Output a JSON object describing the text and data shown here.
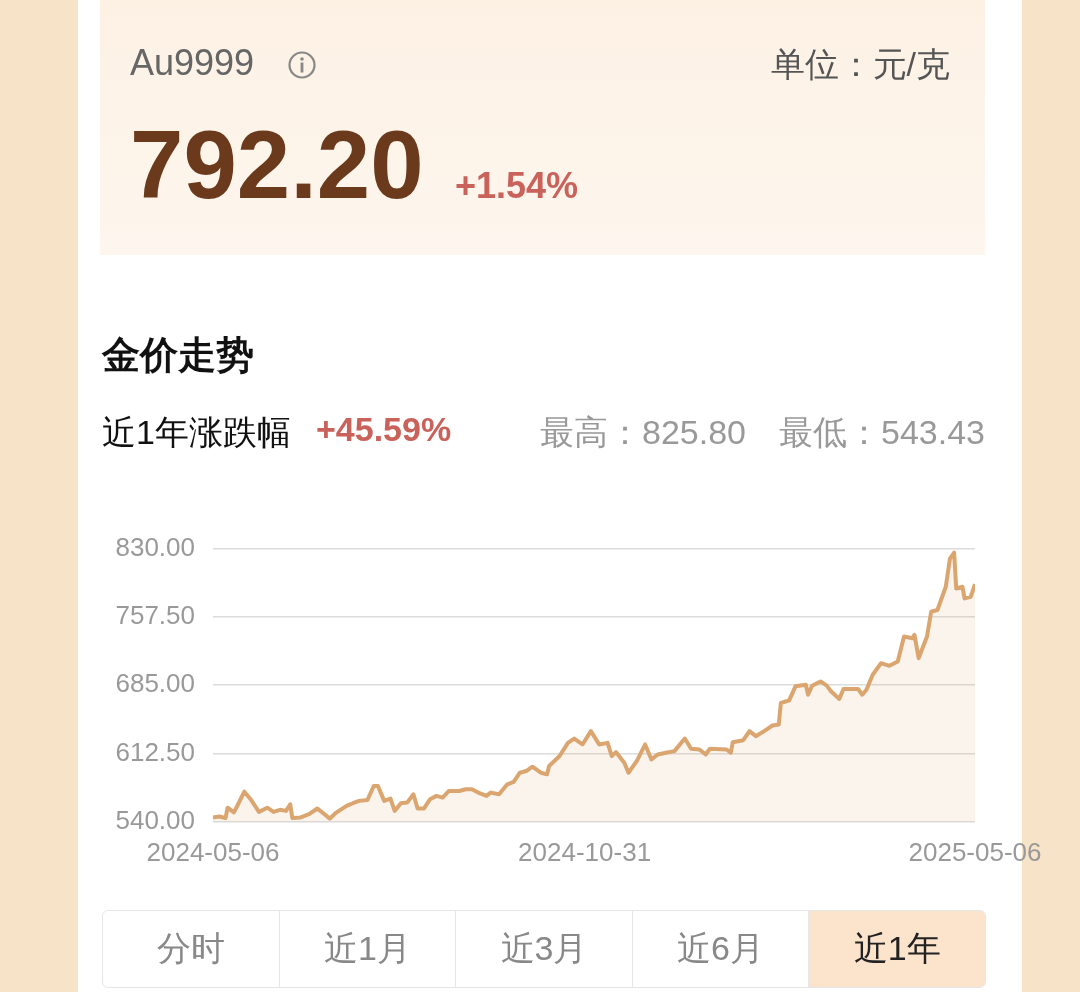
{
  "chart_data": {
    "type": "area",
    "title": "金价走势",
    "annotations": [
      "Au9999",
      "单位：元/克",
      "792.20",
      "+1.54%",
      "近1年涨跌幅",
      "+45.59%",
      "最高：825.80",
      "最低：543.43",
      "分时",
      "近1月",
      "近3月",
      "近6月",
      "近1年"
    ],
    "x": [
      "2024-05-06",
      "2024-05-09",
      "2024-05-12",
      "2024-05-13",
      "2024-05-16",
      "2024-05-18",
      "2024-05-21",
      "2024-05-24",
      "2024-05-28",
      "2024-06-01",
      "2024-06-04",
      "2024-06-07",
      "2024-06-10",
      "2024-06-12",
      "2024-06-13",
      "2024-06-17",
      "2024-06-21",
      "2024-06-25",
      "2024-07-01",
      "2024-07-04",
      "2024-07-09",
      "2024-07-12",
      "2024-07-15",
      "2024-07-19",
      "2024-07-22",
      "2024-07-24",
      "2024-07-27",
      "2024-07-30",
      "2024-08-01",
      "2024-08-04",
      "2024-08-07",
      "2024-08-10",
      "2024-08-12",
      "2024-08-15",
      "2024-08-18",
      "2024-08-21",
      "2024-08-24",
      "2024-08-27",
      "2024-09-01",
      "2024-09-04",
      "2024-09-07",
      "2024-09-10",
      "2024-09-14",
      "2024-09-16",
      "2024-09-20",
      "2024-09-24",
      "2024-09-27",
      "2024-09-30",
      "2024-10-03",
      "2024-10-06",
      "2024-10-10",
      "2024-10-13",
      "2024-10-14",
      "2024-10-19",
      "2024-10-23",
      "2024-10-26",
      "2024-10-30",
      "2024-11-03",
      "2024-11-07",
      "2024-11-11",
      "2024-11-13",
      "2024-11-15",
      "2024-11-19",
      "2024-11-21",
      "2024-11-25",
      "2024-11-29",
      "2024-12-02",
      "2024-12-05",
      "2024-12-09",
      "2024-12-13",
      "2024-12-18",
      "2024-12-21",
      "2024-12-25",
      "2024-12-28",
      "2024-12-30",
      "2025-01-07",
      "2025-01-09",
      "2025-01-10",
      "2025-01-15",
      "2025-01-18",
      "2025-01-21",
      "2025-01-25",
      "2025-01-29",
      "2025-02-01",
      "2025-02-02",
      "2025-02-06",
      "2025-02-09",
      "2025-02-14",
      "2025-02-15",
      "2025-02-17",
      "2025-02-21",
      "2025-02-24",
      "2025-02-26",
      "2025-03-02",
      "2025-03-04",
      "2025-03-11",
      "2025-03-13",
      "2025-03-15",
      "2025-03-18",
      "2025-03-22",
      "2025-03-26",
      "2025-03-30",
      "2025-04-02",
      "2025-04-06",
      "2025-04-07",
      "2025-04-09",
      "2025-04-13",
      "2025-04-15",
      "2025-04-18",
      "2025-04-22",
      "2025-04-24",
      "2025-04-26",
      "2025-04-27",
      "2025-04-30",
      "2025-05-01",
      "2025-05-04",
      "2025-05-06"
    ],
    "series": [
      {
        "color": "#dba56f",
        "values": [
          544.6,
          545.6,
          544,
          555,
          550,
          558.6,
          572,
          564,
          550.5,
          555,
          550.5,
          552.7,
          551.6,
          558.6,
          544,
          544.6,
          548.1,
          554.1,
          543.43,
          549.8,
          556.9,
          559.7,
          562.2,
          563.2,
          578,
          578,
          562.2,
          564.7,
          551.6,
          559.7,
          560.4,
          569.2,
          554.1,
          554.1,
          564,
          567.5,
          565.7,
          572.7,
          572.7,
          574.5,
          574.5,
          571,
          567.5,
          571,
          569.2,
          579.8,
          582.3,
          592.1,
          593.9,
          598.5,
          592.1,
          590.4,
          599.2,
          609.8,
          623.8,
          628.4,
          622.1,
          636.2,
          622.1,
          623.8,
          609.8,
          614,
          602.7,
          592.1,
          604.5,
          622.1,
          606.2,
          611.5,
          613.3,
          615,
          628.4,
          617.5,
          616.8,
          611.5,
          617.5,
          616.8,
          613.3,
          624.5,
          626.6,
          636.2,
          630.9,
          636.2,
          642.2,
          643.2,
          666.1,
          668.9,
          683.8,
          685.5,
          674.9,
          684.5,
          689,
          684.5,
          678.5,
          670.4,
          681,
          681,
          674.9,
          680.2,
          696.1,
          708.4,
          705.6,
          710.2,
          736.6,
          734.9,
          738.4,
          713.7,
          736.6,
          763,
          764.8,
          789.5,
          819.4,
          825.8,
          787.7,
          789.5,
          777.1,
          778.9,
          792.2
        ]
      }
    ],
    "ylim": [
      540,
      830
    ],
    "yticks": [
      {
        "value": 540,
        "label": "540.00"
      },
      {
        "value": 612.5,
        "label": "612.50"
      },
      {
        "value": 685,
        "label": "685.00"
      },
      {
        "value": 757.5,
        "label": "757.50"
      },
      {
        "value": 830,
        "label": "830.00"
      }
    ],
    "xlim": [
      "2024-05-06",
      "2025-05-06"
    ],
    "xticks": [
      "2024-05-06",
      "2024-10-31",
      "2025-05-06"
    ],
    "grid": "y",
    "legend": false,
    "marker": "none",
    "line_style": "solid"
  }
}
